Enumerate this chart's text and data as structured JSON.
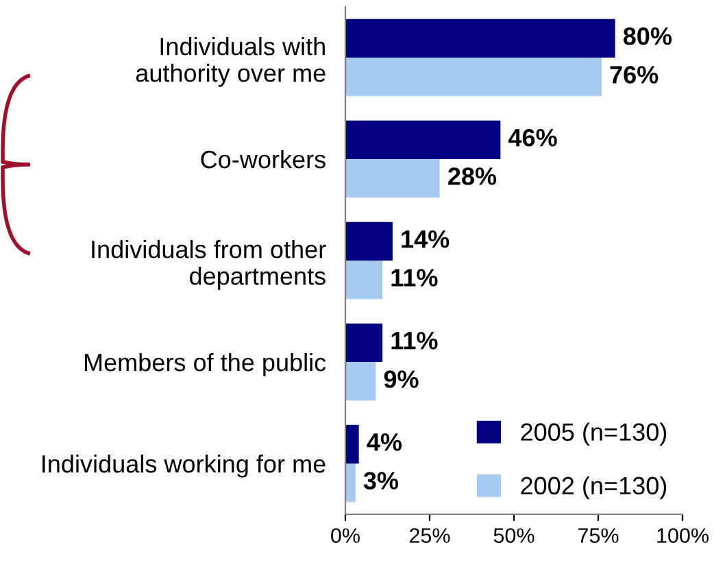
{
  "chart_data": {
    "type": "bar",
    "orientation": "horizontal",
    "categories": [
      "Individuals with\nauthority over me",
      "Co-workers",
      "Individuals from other\ndepartments",
      "Members of the public",
      "Individuals working for me"
    ],
    "series": [
      {
        "name": "2005 (n=130)",
        "color": "#000080",
        "values": [
          80,
          46,
          14,
          11,
          4
        ]
      },
      {
        "name": "2002 (n=130)",
        "color": "#a6caf0",
        "values": [
          76,
          28,
          11,
          9,
          3
        ]
      }
    ],
    "xlim": [
      0,
      100
    ],
    "xticks": [
      {
        "value": 0,
        "label": "0%"
      },
      {
        "value": 25,
        "label": "25%"
      },
      {
        "value": 50,
        "label": "50%"
      },
      {
        "value": 75,
        "label": "75%"
      },
      {
        "value": 100,
        "label": "100%"
      }
    ],
    "value_labels": [
      [
        "80%",
        "46%",
        "14%",
        "11%",
        "4%"
      ],
      [
        "76%",
        "28%",
        "11%",
        "9%",
        "3%"
      ]
    ],
    "legend": "bottom right",
    "grid": false
  }
}
